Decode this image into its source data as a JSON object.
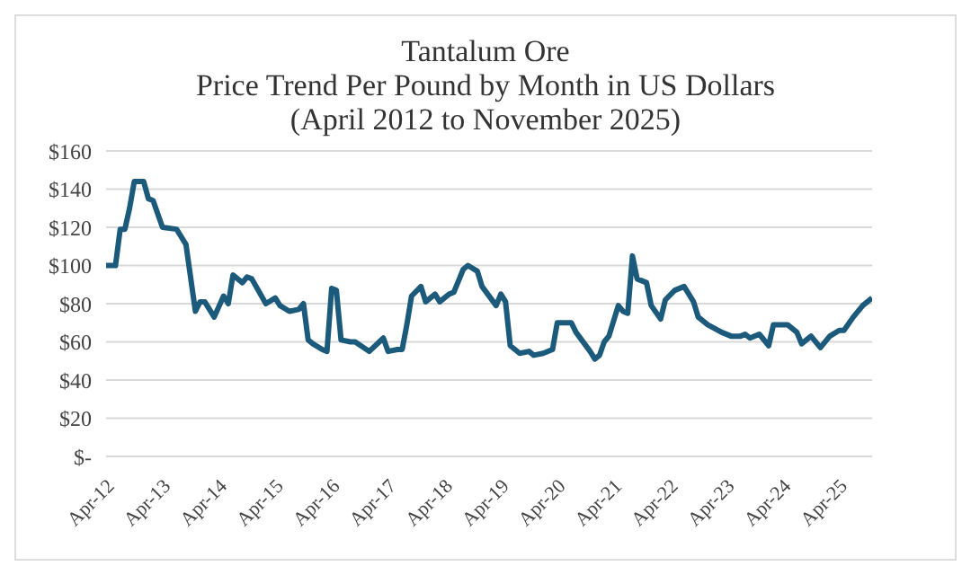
{
  "chart_data": {
    "type": "line",
    "title": "Tantalum Ore",
    "subtitle": "Price Trend Per Pound by Month in US Dollars\n(April 2012 to November 2025)",
    "x": [
      "2012-04",
      "2012-06",
      "2012-07",
      "2012-08",
      "2012-09",
      "2012-10",
      "2012-12",
      "2013-01",
      "2013-02",
      "2013-04",
      "2013-07",
      "2013-09",
      "2013-11",
      "2013-12",
      "2014-01",
      "2014-03",
      "2014-05",
      "2014-06",
      "2014-07",
      "2014-09",
      "2014-10",
      "2014-11",
      "2015-02",
      "2015-04",
      "2015-05",
      "2015-07",
      "2015-09",
      "2015-10",
      "2015-11",
      "2015-12",
      "2016-02",
      "2016-03",
      "2016-04",
      "2016-05",
      "2016-06",
      "2016-08",
      "2016-09",
      "2016-12",
      "2017-03",
      "2017-04",
      "2017-06",
      "2017-07",
      "2017-08",
      "2017-09",
      "2017-11",
      "2017-12",
      "2018-02",
      "2018-03",
      "2018-05",
      "2018-06",
      "2018-08",
      "2018-09",
      "2018-11",
      "2018-12",
      "2019-03",
      "2019-04",
      "2019-05",
      "2019-06",
      "2019-08",
      "2019-10",
      "2019-11",
      "2020-01",
      "2020-03",
      "2020-04",
      "2020-07",
      "2020-08",
      "2020-11",
      "2020-12",
      "2021-01",
      "2021-02",
      "2021-03",
      "2021-05",
      "2021-06",
      "2021-07",
      "2021-08",
      "2021-09",
      "2021-11",
      "2021-12",
      "2022-02",
      "2022-03",
      "2022-05",
      "2022-07",
      "2022-09",
      "2022-10",
      "2022-12",
      "2023-03",
      "2023-05",
      "2023-07",
      "2023-08",
      "2023-09",
      "2023-11",
      "2024-01",
      "2024-02",
      "2024-04",
      "2024-05",
      "2024-07",
      "2024-08",
      "2024-10",
      "2024-12",
      "2025-02",
      "2025-04",
      "2025-05",
      "2025-07",
      "2025-09",
      "2025-11"
    ],
    "series": [
      {
        "color": "#1c5a7c",
        "values": [
          100,
          100,
          119,
          119,
          130,
          144,
          144,
          135,
          134,
          120,
          119,
          111,
          76,
          81,
          81,
          73,
          84,
          80,
          95,
          91,
          94,
          93,
          80,
          83,
          79,
          76,
          77,
          80,
          61,
          59,
          56,
          55,
          88,
          87,
          61,
          60,
          60,
          55,
          62,
          55,
          56,
          56,
          69,
          84,
          89,
          81,
          85,
          81,
          85,
          86,
          98,
          100,
          97,
          89,
          79,
          85,
          81,
          58,
          54,
          55,
          53,
          54,
          56,
          70,
          70,
          65,
          55,
          51,
          53,
          60,
          63,
          79,
          76,
          75,
          105,
          93,
          91,
          79,
          72,
          82,
          87,
          89,
          81,
          73,
          69,
          65,
          63,
          63,
          64,
          62,
          64,
          58,
          69,
          69,
          69,
          65,
          59,
          63,
          57,
          63,
          66,
          66,
          73,
          79,
          83
        ]
      }
    ],
    "xlim": [
      "2012-04",
      "2025-11"
    ],
    "xticks": [
      {
        "value": "2012-04",
        "label": "Apr-12"
      },
      {
        "value": "2013-04",
        "label": "Apr-13"
      },
      {
        "value": "2014-04",
        "label": "Apr-14"
      },
      {
        "value": "2015-04",
        "label": "Apr-15"
      },
      {
        "value": "2016-04",
        "label": "Apr-16"
      },
      {
        "value": "2017-04",
        "label": "Apr-17"
      },
      {
        "value": "2018-04",
        "label": "Apr-18"
      },
      {
        "value": "2019-04",
        "label": "Apr-19"
      },
      {
        "value": "2020-04",
        "label": "Apr-20"
      },
      {
        "value": "2021-04",
        "label": "Apr-21"
      },
      {
        "value": "2022-04",
        "label": "Apr-22"
      },
      {
        "value": "2023-04",
        "label": "Apr-23"
      },
      {
        "value": "2024-04",
        "label": "Apr-24"
      },
      {
        "value": "2025-04",
        "label": "Apr-25"
      }
    ],
    "ylim": [
      0,
      160
    ],
    "yticks": [
      {
        "value": 0,
        "label": "$-"
      },
      {
        "value": 20,
        "label": "$20"
      },
      {
        "value": 40,
        "label": "$40"
      },
      {
        "value": 60,
        "label": "$60"
      },
      {
        "value": 80,
        "label": "$80"
      },
      {
        "value": 100,
        "label": "$100"
      },
      {
        "value": 120,
        "label": "$120"
      },
      {
        "value": 140,
        "label": "$140"
      },
      {
        "value": 160,
        "label": "$160"
      }
    ],
    "grid": "y",
    "legend": false,
    "marker": "none",
    "line_style": "solid"
  }
}
